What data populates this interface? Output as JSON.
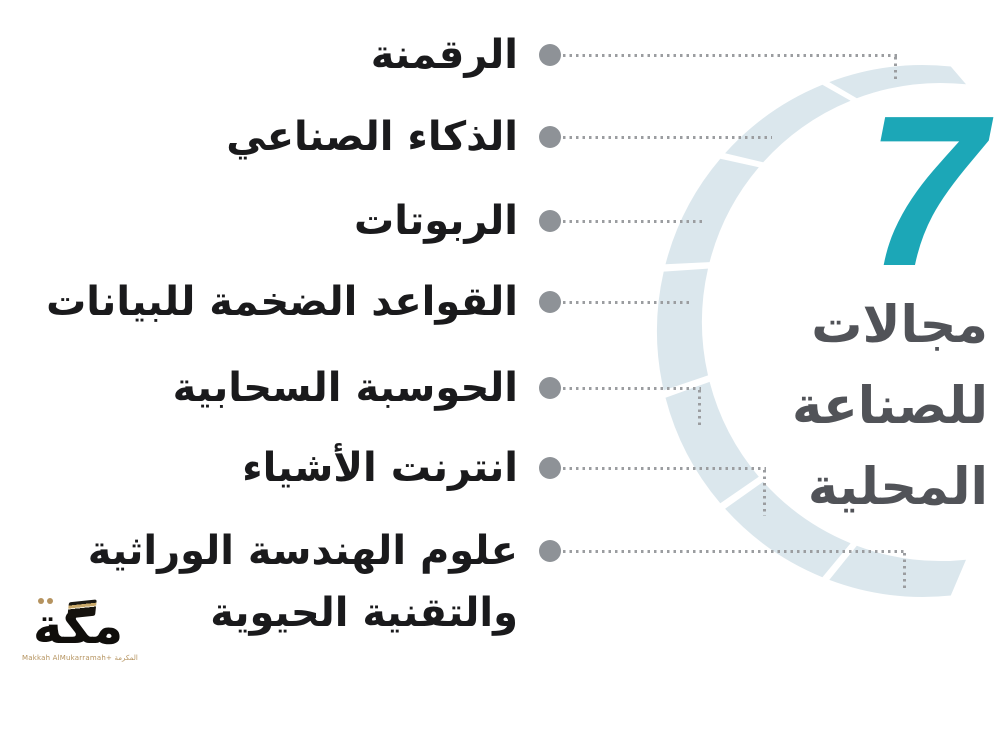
{
  "infographic": {
    "background": "#ffffff",
    "headline": {
      "number": "7",
      "number_color": "#1CA7B7",
      "title_lines": [
        "مجالات",
        "للصناعة",
        "المحلية"
      ],
      "title_color": "#515358"
    },
    "items": [
      "الرقمنة",
      "الذكاء الصناعي",
      "الربوتات",
      "القواعد الضخمة للبيانات",
      "الحوسبة السحابية",
      "انترنت الأشياء",
      "علوم الهندسة الوراثية\nوالتقنية الحيوية"
    ],
    "arc": {
      "segment_count": 7,
      "color": "#DBE7ED"
    },
    "bullet_color": "#8E9297",
    "leader_color": "#9B9DA0",
    "item_text_color": "#1A1A1C",
    "logo": {
      "wordmark": "مكة",
      "tagline": "Makkah AlMukarramah+ المكرمة",
      "gold": "#B5935F"
    }
  }
}
